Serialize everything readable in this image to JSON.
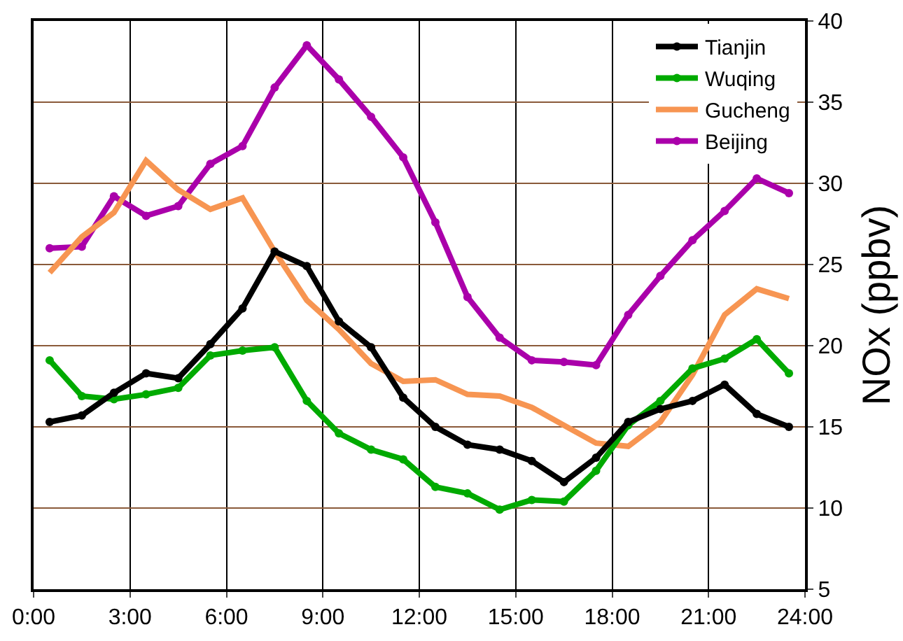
{
  "chart_data": {
    "type": "line",
    "ylabel": "NOx (ppbv)",
    "x": [
      0.5,
      1.5,
      2.5,
      3.5,
      4.5,
      5.5,
      6.5,
      7.5,
      8.5,
      9.5,
      10.5,
      11.5,
      12.5,
      13.5,
      14.5,
      15.5,
      16.5,
      17.5,
      18.5,
      19.5,
      20.5,
      21.5,
      22.5,
      23.5
    ],
    "series": [
      {
        "name": "Tianjin",
        "color": "#000000",
        "marker": "circle",
        "values": [
          15.3,
          15.7,
          17.1,
          18.3,
          18.0,
          20.1,
          22.3,
          25.8,
          24.9,
          21.5,
          19.9,
          16.8,
          15.0,
          13.9,
          13.6,
          12.9,
          11.6,
          13.1,
          15.3,
          16.1,
          16.6,
          17.6,
          15.8,
          15.0
        ]
      },
      {
        "name": "Wuqing",
        "color": "#00aa00",
        "marker": "circle",
        "values": [
          19.1,
          16.9,
          16.7,
          17.0,
          17.4,
          19.4,
          19.7,
          19.9,
          16.6,
          14.6,
          13.6,
          13.0,
          11.3,
          10.9,
          9.9,
          10.5,
          10.4,
          12.3,
          15.1,
          16.6,
          18.6,
          19.2,
          20.4,
          18.3
        ]
      },
      {
        "name": "Gucheng",
        "color": "#f79552",
        "marker": "none",
        "values": [
          24.5,
          26.7,
          28.2,
          31.4,
          29.6,
          28.4,
          29.1,
          25.8,
          22.8,
          21.0,
          18.9,
          17.8,
          17.9,
          17.0,
          16.9,
          16.2,
          15.1,
          14.0,
          13.8,
          15.3,
          18.2,
          21.9,
          23.5,
          22.9
        ]
      },
      {
        "name": "Beijing",
        "color": "#aa00aa",
        "marker": "circle",
        "values": [
          26.0,
          26.1,
          29.2,
          28.0,
          28.6,
          31.2,
          32.3,
          35.9,
          38.5,
          36.4,
          34.1,
          31.6,
          27.6,
          23.0,
          20.5,
          19.1,
          19.0,
          18.8,
          21.9,
          24.3,
          26.5,
          28.3,
          30.3,
          29.4
        ]
      }
    ],
    "xlim": [
      0,
      24
    ],
    "xticks": [
      {
        "value": 0,
        "label": "0:00"
      },
      {
        "value": 3,
        "label": "3:00"
      },
      {
        "value": 6,
        "label": "6:00"
      },
      {
        "value": 9,
        "label": "9:00"
      },
      {
        "value": 12,
        "label": "12:00"
      },
      {
        "value": 15,
        "label": "15:00"
      },
      {
        "value": 18,
        "label": "18:00"
      },
      {
        "value": 21,
        "label": "21:00"
      },
      {
        "value": 24,
        "label": "24:00"
      }
    ],
    "ylim": [
      5,
      40
    ],
    "yticks": [
      5,
      10,
      15,
      20,
      25,
      30,
      35,
      40
    ],
    "grid": true,
    "legend": "top right",
    "line_style": "solid"
  }
}
